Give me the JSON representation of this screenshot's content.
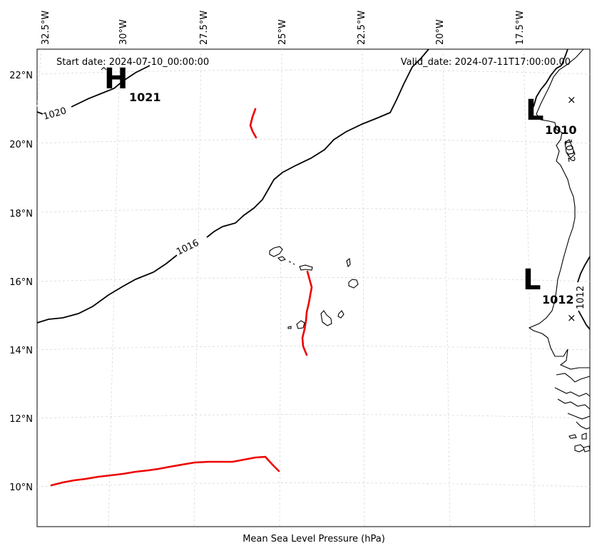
{
  "header": {
    "start_date": "Start date: 2024-07-10_00:00:00",
    "valid_date": "Valid_date: 2024-07-11T17:00:00.00"
  },
  "xlabel": "Mean Sea Level Pressure (hPa)",
  "lon_labels": [
    "32.5°W",
    "30°W",
    "27.5°W",
    "25°W",
    "22.5°W",
    "20°W",
    "17.5°W"
  ],
  "lat_labels": [
    "22°N",
    "20°N",
    "18°N",
    "16°N",
    "14°N",
    "12°N",
    "10°N"
  ],
  "pressure_systems": [
    {
      "letter": "H",
      "value": "1021"
    },
    {
      "letter": "L",
      "value": "1010"
    },
    {
      "letter": "L",
      "value": "1012"
    }
  ],
  "isobar_labels": [
    "1020",
    "1016",
    "1012",
    "1012"
  ],
  "colors": {
    "track": "#ee0000",
    "isobar": "#000000",
    "grid": "#d8d8d8"
  }
}
